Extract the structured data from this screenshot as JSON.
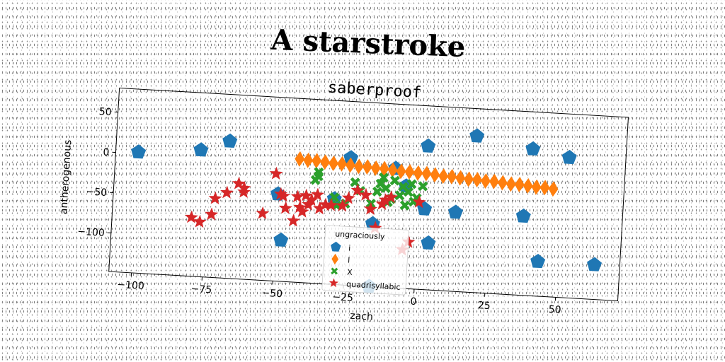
{
  "page": {
    "title": "A starstroke"
  },
  "chart_data": {
    "type": "scatter",
    "title": "saberproof",
    "xlabel": "zach",
    "ylabel": "antherogenous",
    "xlim": [
      -108,
      72
    ],
    "ylim": [
      -148,
      80
    ],
    "xticks": [
      -100,
      -75,
      -50,
      -25,
      0,
      25,
      50
    ],
    "yticks": [
      50,
      0,
      -50,
      -100
    ],
    "grid": false,
    "legend": {
      "title": "ungraciously",
      "placement": "lower-center"
    },
    "series": [
      {
        "name": "i",
        "marker": "pentagon",
        "color": "#1f77b4",
        "x": [
          -100,
          -78,
          -68,
          -25,
          -9,
          2,
          19,
          39,
          52,
          -50,
          -30,
          2,
          13,
          37,
          43,
          63,
          -48,
          -16,
          4,
          -16,
          -5
        ],
        "y": [
          2,
          9,
          22,
          10,
          0,
          30,
          46,
          34,
          26,
          -40,
          -42,
          -48,
          -50,
          -50,
          -105,
          -105,
          -97,
          -70,
          -90,
          -148,
          -21
        ]
      },
      {
        "name": "l",
        "marker": "diamond",
        "color": "#ff7f0e",
        "x": [
          -43,
          -40,
          -37,
          -34,
          -31,
          -28,
          -25,
          -22,
          -19,
          -16,
          -13,
          -10,
          -7,
          -4,
          -1,
          2,
          5,
          8,
          11,
          14,
          17,
          20,
          23,
          26,
          29,
          32,
          35,
          38,
          41,
          44,
          47
        ],
        "y": [
          5,
          4,
          4,
          3,
          2,
          2,
          1,
          0,
          0,
          -1,
          -1,
          -2,
          -3,
          -3,
          -4,
          -4,
          -5,
          -6,
          -6,
          -7,
          -8,
          -8,
          -9,
          -9,
          -10,
          -11,
          -11,
          -12,
          -13,
          -13,
          -14
        ]
      },
      {
        "name": "X",
        "marker": "x",
        "color": "#2ca02c",
        "x": [
          -36,
          -36,
          -37,
          -30,
          -29,
          -26,
          -23,
          -21,
          -17,
          -15,
          -14,
          -12,
          -10,
          -9,
          -7,
          -6,
          -4,
          -2,
          -1,
          1,
          -5,
          -3,
          -11,
          -13
        ],
        "y": [
          -10,
          -15,
          -20,
          -40,
          -50,
          -47,
          -20,
          -30,
          -45,
          -30,
          -20,
          -25,
          -38,
          -15,
          -33,
          -22,
          -28,
          -40,
          -35,
          -20,
          -45,
          -18,
          -42,
          -12
        ]
      },
      {
        "name": "quadrisyllabic",
        "marker": "star",
        "color": "#d62728",
        "x": [
          -80,
          -77,
          -73,
          -72,
          -68,
          -64,
          -62,
          -62,
          -55,
          -51,
          -49,
          -48,
          -47,
          -44,
          -43,
          -42,
          -41,
          -40,
          -39,
          -38,
          -36,
          -35,
          -33,
          -31,
          -27,
          -25,
          -22,
          -19,
          -17,
          -15,
          -13,
          -12,
          -10,
          -5,
          0,
          -3
        ],
        "y": [
          -75,
          -80,
          -70,
          -50,
          -42,
          -30,
          -35,
          -40,
          -65,
          -15,
          -40,
          -42,
          -57,
          -72,
          -42,
          -55,
          -60,
          -40,
          -51,
          -45,
          -38,
          -55,
          -50,
          -50,
          -50,
          -40,
          -30,
          -35,
          -52,
          -75,
          -45,
          -40,
          -36,
          -100,
          -40,
          -90
        ]
      }
    ]
  }
}
